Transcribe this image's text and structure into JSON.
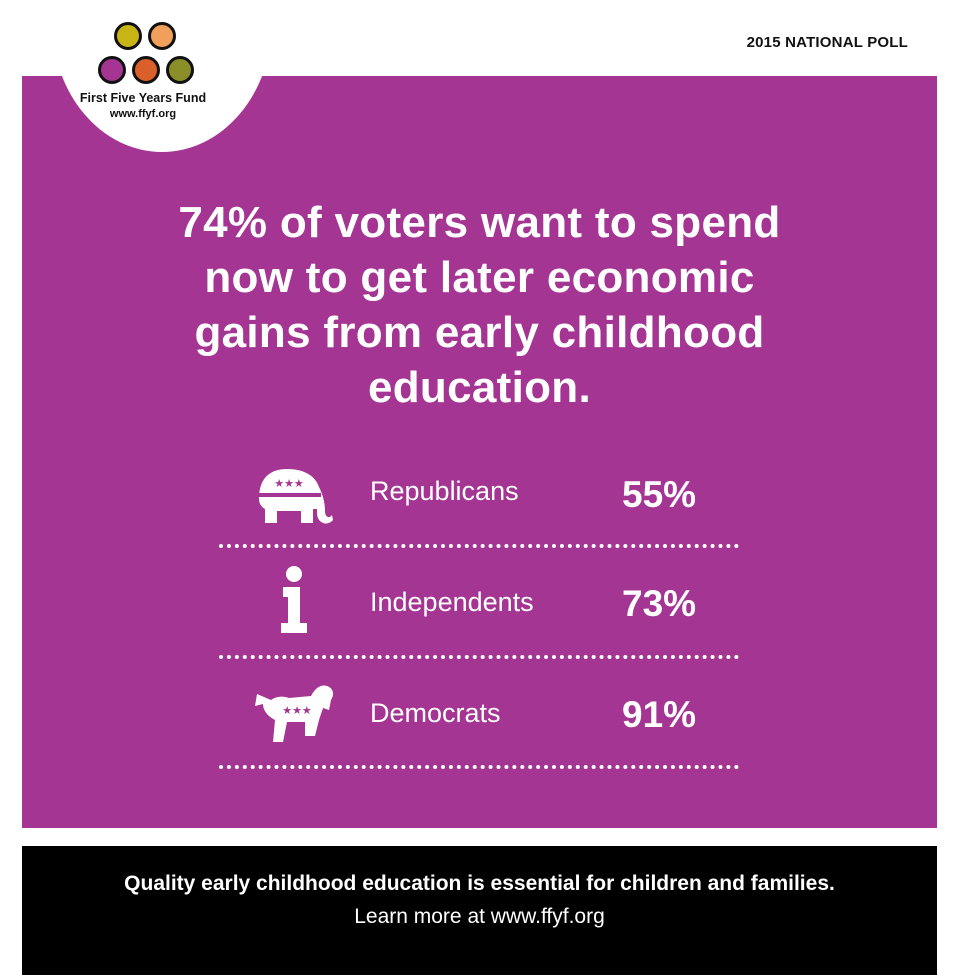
{
  "header": {
    "poll_label": "2015 NATIONAL POLL"
  },
  "logo": {
    "name": "First Five Years Fund",
    "url": "www.ffyf.org",
    "dot_colors": [
      "#c8b414",
      "#f0a05a",
      "#a43592",
      "#d95f2b",
      "#8a8f2a"
    ]
  },
  "headline": {
    "line1": "74% of voters want to spend",
    "line2": "now to get later economic",
    "line3": "gains from early childhood",
    "line4": "education."
  },
  "chart_data": {
    "type": "table",
    "title": "74% of voters want to spend now to get later economic gains from early childhood education.",
    "categories": [
      "Republicans",
      "Independents",
      "Democrats"
    ],
    "values": [
      55,
      73,
      91
    ],
    "value_labels": [
      "55%",
      "73%",
      "91%"
    ],
    "icons": [
      "elephant-icon",
      "independent-i-icon",
      "donkey-icon"
    ]
  },
  "footer": {
    "line1": "Quality early childhood education is essential for children and families.",
    "line2": "Learn more at www.ffyf.org"
  },
  "colors": {
    "panel": "#a43592",
    "footer": "#000000",
    "text_light": "#ffffff"
  }
}
